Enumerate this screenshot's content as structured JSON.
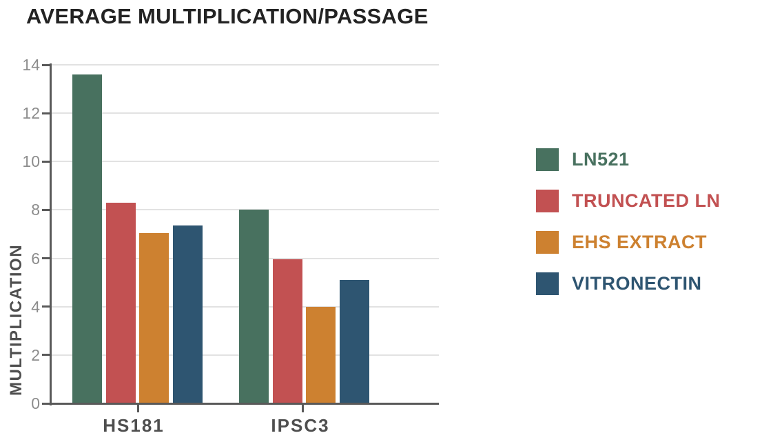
{
  "chart_data": {
    "type": "bar",
    "title": "AVERAGE MULTIPLICATION/PASSAGE",
    "ylabel": "MULTIPLICATION",
    "xlabel": "",
    "categories": [
      "HS181",
      "IPSC3"
    ],
    "series": [
      {
        "name": "LN521",
        "color": "#48715f",
        "values": [
          13.6,
          8.0
        ]
      },
      {
        "name": "TRUNCATED LN",
        "color": "#c25152",
        "values": [
          8.3,
          5.95
        ]
      },
      {
        "name": "EHS EXTRACT",
        "color": "#cd8130",
        "values": [
          7.05,
          4.0
        ]
      },
      {
        "name": "VITRONECTIN",
        "color": "#2e5571",
        "values": [
          7.35,
          5.1
        ]
      }
    ],
    "ylim": [
      0,
      14
    ],
    "yticks": [
      0,
      2,
      4,
      6,
      8,
      10,
      12,
      14
    ],
    "grid": true,
    "legend_position": "right",
    "colors": {
      "axis": "#595959",
      "gridline": "#e2e2e2",
      "tick_label": "#8c8c8c",
      "category_label": "#4f4f4f",
      "title": "#232323"
    }
  }
}
